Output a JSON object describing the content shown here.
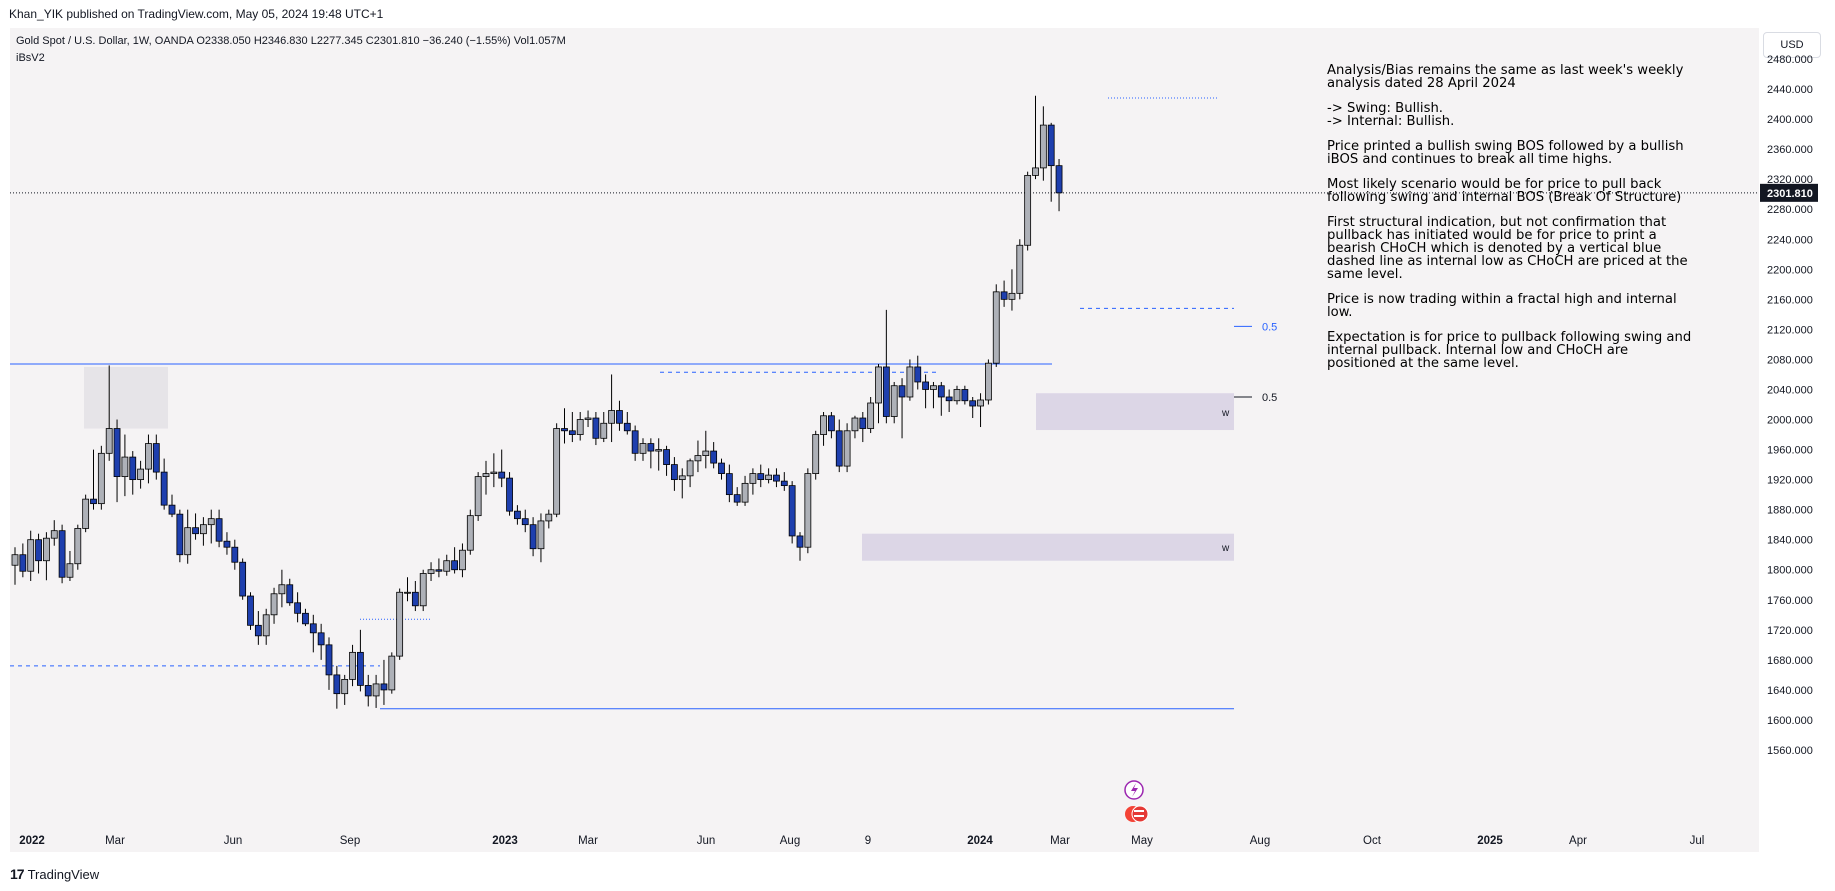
{
  "published_line": "Khan_YIK published on TradingView.com, May 05, 2024 19:48 UTC+1",
  "symbol_line": "Gold Spot / U.S. Dollar, 1W, OANDA  O2338.050  H2346.830  L2277.345  C2301.810  −36.240 (−1.55%)  Vol1.057M",
  "indicator": "iBsV2",
  "currency_button": "USD",
  "last_price": "2301.810",
  "price_ticks": [
    "2480.000",
    "2440.000",
    "2400.000",
    "2360.000",
    "2320.000",
    "2280.000",
    "2240.000",
    "2200.000",
    "2160.000",
    "2120.000",
    "2080.000",
    "2040.000",
    "2000.000",
    "1960.000",
    "1920.000",
    "1880.000",
    "1840.000",
    "1800.000",
    "1760.000",
    "1720.000",
    "1680.000",
    "1640.000",
    "1600.000",
    "1560.000"
  ],
  "time_labels": [
    "2022",
    "Mar",
    "Jun",
    "Sep",
    "2023",
    "Mar",
    "Jun",
    "Aug",
    "9",
    "2024",
    "Mar",
    "May",
    "Aug",
    "Oct",
    "2025",
    "Apr",
    "Jul"
  ],
  "annotations": {
    "fib_upper": "0.5",
    "fib_lower": "0.5",
    "zone_upper_label": "w",
    "zone_lower_label": "w"
  },
  "analysis": [
    " Analysis/Bias remains the same as last week's weekly analysis dated 28 April 2024",
    "-> Swing: Bullish.\n-> Internal: Bullish.",
    "Price  printed a bullish swing BOS followed by a bullish iBOS and continues to break all time highs.",
    "Most likely scenario would be for price to pull back following swing and internal BOS (Break Of Structure)",
    "First structural indication, but not confirmation that pullback has initiated would be for price to print a bearish CHoCH which is denoted by a vertical blue dashed line as internal low as CHoCH are priced at the same level.",
    "Price is now trading within a fractal high and internal low.",
    "Expectation is for price to pullback following swing and internal pullback.  Internal low and CHoCH are positioned at the same level."
  ],
  "footer_brand": "TradingView",
  "colors": {
    "bull_candle": "#aeb1b8",
    "bear_candle": "#1e3fae",
    "zone_fill": "#dcd6e6",
    "blue_line": "#2962ff",
    "background": "#f5f3f4"
  },
  "chart_data": {
    "type": "candlestick",
    "timeframe": "1W",
    "y_range": [
      1540,
      2500
    ],
    "candles": [
      {
        "o": 1806,
        "h": 1830,
        "l": 1780,
        "c": 1820
      },
      {
        "o": 1820,
        "h": 1835,
        "l": 1790,
        "c": 1798
      },
      {
        "o": 1798,
        "h": 1852,
        "l": 1785,
        "c": 1840
      },
      {
        "o": 1840,
        "h": 1848,
        "l": 1795,
        "c": 1812
      },
      {
        "o": 1812,
        "h": 1850,
        "l": 1786,
        "c": 1842
      },
      {
        "o": 1842,
        "h": 1866,
        "l": 1832,
        "c": 1852
      },
      {
        "o": 1852,
        "h": 1860,
        "l": 1782,
        "c": 1790
      },
      {
        "o": 1790,
        "h": 1825,
        "l": 1785,
        "c": 1808
      },
      {
        "o": 1808,
        "h": 1860,
        "l": 1800,
        "c": 1855
      },
      {
        "o": 1855,
        "h": 1900,
        "l": 1850,
        "c": 1894
      },
      {
        "o": 1894,
        "h": 1960,
        "l": 1880,
        "c": 1888
      },
      {
        "o": 1888,
        "h": 1965,
        "l": 1880,
        "c": 1955
      },
      {
        "o": 1955,
        "h": 2072,
        "l": 1945,
        "c": 1988
      },
      {
        "o": 1988,
        "h": 2000,
        "l": 1890,
        "c": 1924
      },
      {
        "o": 1924,
        "h": 1980,
        "l": 1898,
        "c": 1950
      },
      {
        "o": 1950,
        "h": 1958,
        "l": 1900,
        "c": 1920
      },
      {
        "o": 1920,
        "h": 1945,
        "l": 1908,
        "c": 1934
      },
      {
        "o": 1934,
        "h": 1980,
        "l": 1915,
        "c": 1968
      },
      {
        "o": 1968,
        "h": 1980,
        "l": 1920,
        "c": 1930
      },
      {
        "o": 1930,
        "h": 1948,
        "l": 1880,
        "c": 1886
      },
      {
        "o": 1886,
        "h": 1900,
        "l": 1870,
        "c": 1874
      },
      {
        "o": 1874,
        "h": 1880,
        "l": 1810,
        "c": 1820
      },
      {
        "o": 1820,
        "h": 1880,
        "l": 1808,
        "c": 1856
      },
      {
        "o": 1856,
        "h": 1875,
        "l": 1840,
        "c": 1848
      },
      {
        "o": 1848,
        "h": 1870,
        "l": 1832,
        "c": 1860
      },
      {
        "o": 1860,
        "h": 1880,
        "l": 1835,
        "c": 1868
      },
      {
        "o": 1868,
        "h": 1880,
        "l": 1830,
        "c": 1838
      },
      {
        "o": 1838,
        "h": 1850,
        "l": 1820,
        "c": 1830
      },
      {
        "o": 1830,
        "h": 1840,
        "l": 1800,
        "c": 1810
      },
      {
        "o": 1810,
        "h": 1815,
        "l": 1760,
        "c": 1765
      },
      {
        "o": 1765,
        "h": 1770,
        "l": 1720,
        "c": 1726
      },
      {
        "o": 1726,
        "h": 1745,
        "l": 1700,
        "c": 1712
      },
      {
        "o": 1712,
        "h": 1748,
        "l": 1700,
        "c": 1740
      },
      {
        "o": 1740,
        "h": 1776,
        "l": 1728,
        "c": 1768
      },
      {
        "o": 1768,
        "h": 1800,
        "l": 1750,
        "c": 1780
      },
      {
        "o": 1780,
        "h": 1788,
        "l": 1752,
        "c": 1756
      },
      {
        "o": 1756,
        "h": 1770,
        "l": 1730,
        "c": 1742
      },
      {
        "o": 1742,
        "h": 1748,
        "l": 1725,
        "c": 1728
      },
      {
        "o": 1728,
        "h": 1740,
        "l": 1690,
        "c": 1716
      },
      {
        "o": 1716,
        "h": 1728,
        "l": 1680,
        "c": 1700
      },
      {
        "o": 1700,
        "h": 1710,
        "l": 1640,
        "c": 1660
      },
      {
        "o": 1660,
        "h": 1672,
        "l": 1615,
        "c": 1635
      },
      {
        "o": 1635,
        "h": 1660,
        "l": 1620,
        "c": 1654
      },
      {
        "o": 1654,
        "h": 1700,
        "l": 1645,
        "c": 1690
      },
      {
        "o": 1690,
        "h": 1720,
        "l": 1638,
        "c": 1646
      },
      {
        "o": 1646,
        "h": 1660,
        "l": 1618,
        "c": 1632
      },
      {
        "o": 1632,
        "h": 1660,
        "l": 1616,
        "c": 1648
      },
      {
        "o": 1648,
        "h": 1680,
        "l": 1620,
        "c": 1640
      },
      {
        "o": 1640,
        "h": 1690,
        "l": 1635,
        "c": 1685
      },
      {
        "o": 1685,
        "h": 1775,
        "l": 1680,
        "c": 1770
      },
      {
        "o": 1770,
        "h": 1790,
        "l": 1758,
        "c": 1770
      },
      {
        "o": 1770,
        "h": 1785,
        "l": 1745,
        "c": 1752
      },
      {
        "o": 1752,
        "h": 1800,
        "l": 1745,
        "c": 1795
      },
      {
        "o": 1795,
        "h": 1810,
        "l": 1785,
        "c": 1800
      },
      {
        "o": 1800,
        "h": 1815,
        "l": 1790,
        "c": 1798
      },
      {
        "o": 1798,
        "h": 1820,
        "l": 1792,
        "c": 1812
      },
      {
        "o": 1812,
        "h": 1830,
        "l": 1795,
        "c": 1800
      },
      {
        "o": 1800,
        "h": 1835,
        "l": 1790,
        "c": 1826
      },
      {
        "o": 1826,
        "h": 1880,
        "l": 1820,
        "c": 1872
      },
      {
        "o": 1872,
        "h": 1930,
        "l": 1865,
        "c": 1924
      },
      {
        "o": 1924,
        "h": 1945,
        "l": 1900,
        "c": 1928
      },
      {
        "o": 1928,
        "h": 1955,
        "l": 1910,
        "c": 1930
      },
      {
        "o": 1930,
        "h": 1960,
        "l": 1910,
        "c": 1922
      },
      {
        "o": 1922,
        "h": 1930,
        "l": 1872,
        "c": 1878
      },
      {
        "o": 1878,
        "h": 1886,
        "l": 1860,
        "c": 1868
      },
      {
        "o": 1868,
        "h": 1880,
        "l": 1850,
        "c": 1860
      },
      {
        "o": 1860,
        "h": 1870,
        "l": 1818,
        "c": 1828
      },
      {
        "o": 1828,
        "h": 1875,
        "l": 1810,
        "c": 1865
      },
      {
        "o": 1865,
        "h": 1880,
        "l": 1855,
        "c": 1874
      },
      {
        "o": 1874,
        "h": 1995,
        "l": 1870,
        "c": 1988
      },
      {
        "o": 1988,
        "h": 2015,
        "l": 1968,
        "c": 1985
      },
      {
        "o": 1985,
        "h": 2010,
        "l": 1970,
        "c": 1980
      },
      {
        "o": 1980,
        "h": 2010,
        "l": 1972,
        "c": 2000
      },
      {
        "o": 2000,
        "h": 2012,
        "l": 1990,
        "c": 2002
      },
      {
        "o": 2002,
        "h": 2010,
        "l": 1966,
        "c": 1975
      },
      {
        "o": 1975,
        "h": 2010,
        "l": 1970,
        "c": 1995
      },
      {
        "o": 1995,
        "h": 2060,
        "l": 1970,
        "c": 2012
      },
      {
        "o": 2012,
        "h": 2025,
        "l": 1985,
        "c": 1995
      },
      {
        "o": 1995,
        "h": 2010,
        "l": 1980,
        "c": 1985
      },
      {
        "o": 1985,
        "h": 1992,
        "l": 1945,
        "c": 1955
      },
      {
        "o": 1955,
        "h": 1975,
        "l": 1945,
        "c": 1968
      },
      {
        "o": 1968,
        "h": 1975,
        "l": 1935,
        "c": 1958
      },
      {
        "o": 1958,
        "h": 1975,
        "l": 1932,
        "c": 1960
      },
      {
        "o": 1960,
        "h": 1965,
        "l": 1925,
        "c": 1940
      },
      {
        "o": 1940,
        "h": 1950,
        "l": 1905,
        "c": 1920
      },
      {
        "o": 1920,
        "h": 1935,
        "l": 1895,
        "c": 1925
      },
      {
        "o": 1925,
        "h": 1948,
        "l": 1910,
        "c": 1945
      },
      {
        "o": 1945,
        "h": 1972,
        "l": 1930,
        "c": 1952
      },
      {
        "o": 1952,
        "h": 1985,
        "l": 1935,
        "c": 1958
      },
      {
        "o": 1958,
        "h": 1970,
        "l": 1935,
        "c": 1942
      },
      {
        "o": 1942,
        "h": 1948,
        "l": 1920,
        "c": 1928
      },
      {
        "o": 1928,
        "h": 1940,
        "l": 1890,
        "c": 1900
      },
      {
        "o": 1900,
        "h": 1910,
        "l": 1885,
        "c": 1890
      },
      {
        "o": 1890,
        "h": 1925,
        "l": 1885,
        "c": 1915
      },
      {
        "o": 1915,
        "h": 1935,
        "l": 1900,
        "c": 1928
      },
      {
        "o": 1928,
        "h": 1940,
        "l": 1910,
        "c": 1920
      },
      {
        "o": 1920,
        "h": 1935,
        "l": 1915,
        "c": 1926
      },
      {
        "o": 1926,
        "h": 1935,
        "l": 1910,
        "c": 1918
      },
      {
        "o": 1918,
        "h": 1930,
        "l": 1905,
        "c": 1912
      },
      {
        "o": 1912,
        "h": 1918,
        "l": 1835,
        "c": 1845
      },
      {
        "o": 1845,
        "h": 1850,
        "l": 1812,
        "c": 1830
      },
      {
        "o": 1830,
        "h": 1935,
        "l": 1822,
        "c": 1928
      },
      {
        "o": 1928,
        "h": 1985,
        "l": 1920,
        "c": 1980
      },
      {
        "o": 1980,
        "h": 2010,
        "l": 1965,
        "c": 2005
      },
      {
        "o": 2005,
        "h": 2010,
        "l": 1975,
        "c": 1985
      },
      {
        "o": 1985,
        "h": 2000,
        "l": 1930,
        "c": 1938
      },
      {
        "o": 1938,
        "h": 1995,
        "l": 1930,
        "c": 1985
      },
      {
        "o": 1985,
        "h": 2005,
        "l": 1975,
        "c": 2002
      },
      {
        "o": 2002,
        "h": 2010,
        "l": 1970,
        "c": 1988
      },
      {
        "o": 1988,
        "h": 2030,
        "l": 1982,
        "c": 2022
      },
      {
        "o": 2022,
        "h": 2074,
        "l": 1995,
        "c": 2070
      },
      {
        "o": 2070,
        "h": 2146,
        "l": 1995,
        "c": 2004
      },
      {
        "o": 2004,
        "h": 2050,
        "l": 1995,
        "c": 2045
      },
      {
        "o": 2045,
        "h": 2055,
        "l": 1975,
        "c": 2030
      },
      {
        "o": 2030,
        "h": 2080,
        "l": 2025,
        "c": 2070
      },
      {
        "o": 2070,
        "h": 2085,
        "l": 2040,
        "c": 2050
      },
      {
        "o": 2050,
        "h": 2060,
        "l": 2015,
        "c": 2040
      },
      {
        "o": 2040,
        "h": 2050,
        "l": 2015,
        "c": 2045
      },
      {
        "o": 2045,
        "h": 2050,
        "l": 2005,
        "c": 2030
      },
      {
        "o": 2030,
        "h": 2040,
        "l": 2010,
        "c": 2025
      },
      {
        "o": 2025,
        "h": 2045,
        "l": 2020,
        "c": 2040
      },
      {
        "o": 2040,
        "h": 2045,
        "l": 2020,
        "c": 2025
      },
      {
        "o": 2025,
        "h": 2030,
        "l": 2002,
        "c": 2018
      },
      {
        "o": 2018,
        "h": 2035,
        "l": 1990,
        "c": 2026
      },
      {
        "o": 2026,
        "h": 2080,
        "l": 2020,
        "c": 2075
      },
      {
        "o": 2075,
        "h": 2180,
        "l": 2070,
        "c": 2170
      },
      {
        "o": 2170,
        "h": 2185,
        "l": 2150,
        "c": 2160
      },
      {
        "o": 2160,
        "h": 2200,
        "l": 2145,
        "c": 2168
      },
      {
        "o": 2168,
        "h": 2240,
        "l": 2160,
        "c": 2232
      },
      {
        "o": 2232,
        "h": 2330,
        "l": 2225,
        "c": 2325
      },
      {
        "o": 2325,
        "h": 2431,
        "l": 2320,
        "c": 2335
      },
      {
        "o": 2335,
        "h": 2417,
        "l": 2318,
        "c": 2392
      },
      {
        "o": 2392,
        "h": 2395,
        "l": 2290,
        "c": 2338
      },
      {
        "o": 2338,
        "h": 2346.83,
        "l": 2277.345,
        "c": 2301.81
      }
    ]
  }
}
